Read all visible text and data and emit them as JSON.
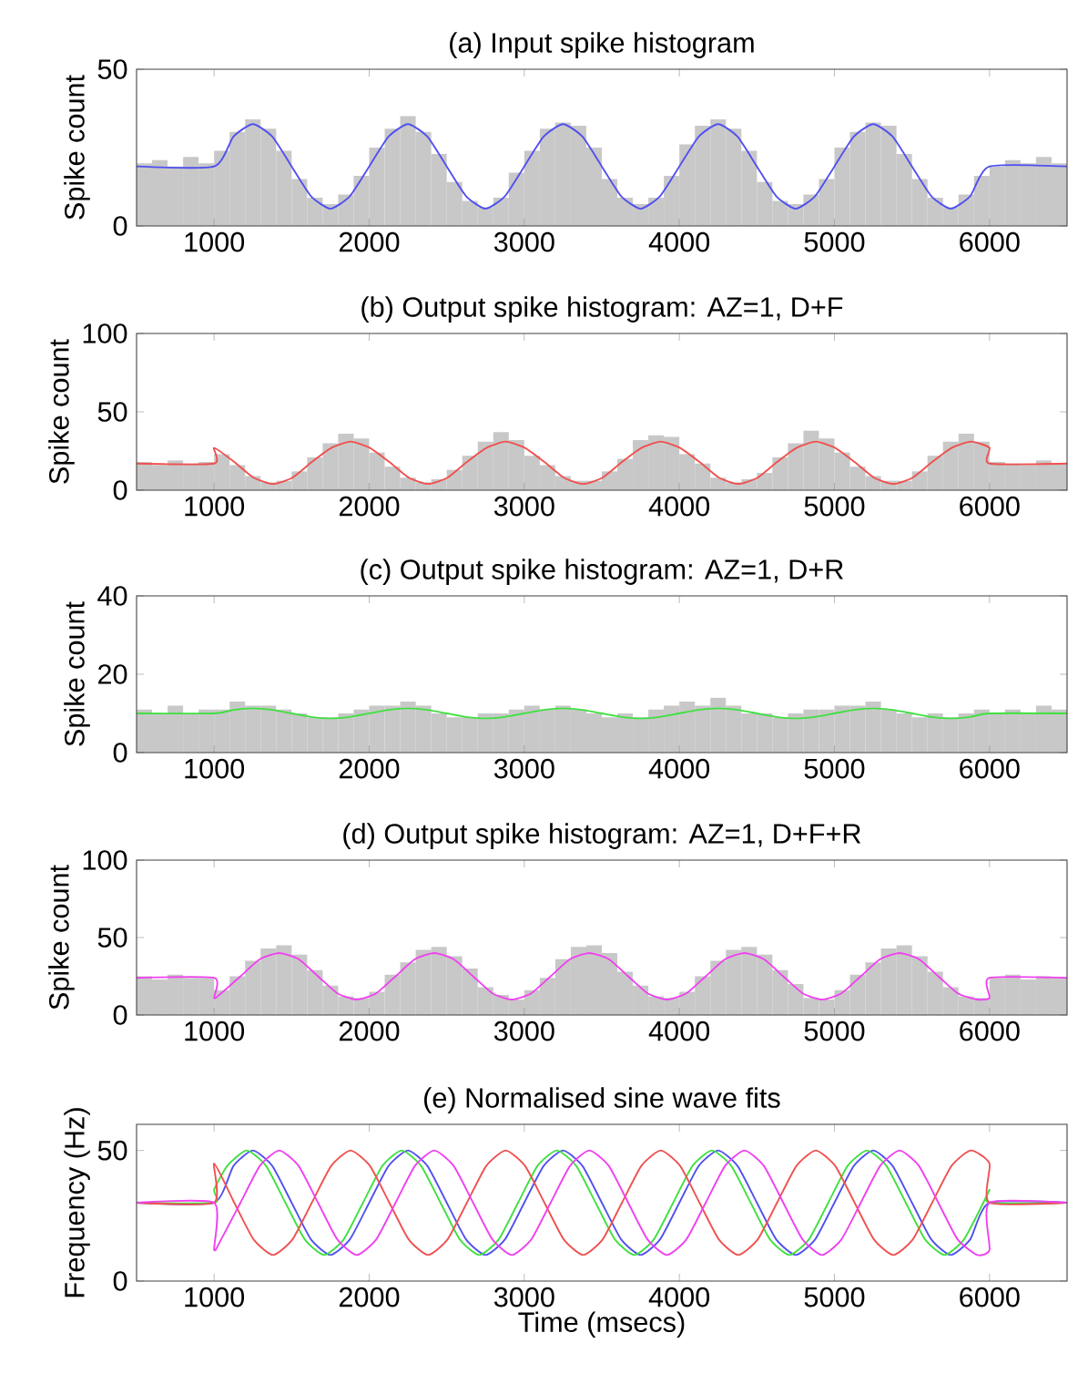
{
  "chart_data": [
    {
      "type": "histogram",
      "title": "(a) Input spike histogram",
      "ylabel": "Spike count",
      "xlim": [
        500,
        6500
      ],
      "xticks": [
        1000,
        2000,
        3000,
        4000,
        5000,
        6000
      ],
      "ylim": [
        0,
        50
      ],
      "yticks": [
        0,
        50
      ],
      "color": "#c8c8c8",
      "bins": [
        500,
        600,
        700,
        800,
        900,
        1000,
        1100,
        1200,
        1300,
        1400,
        1500,
        1600,
        1700,
        1800,
        1900,
        2000,
        2100,
        2200,
        2300,
        2400,
        2500,
        2600,
        2700,
        2800,
        2900,
        3000,
        3100,
        3200,
        3300,
        3400,
        3500,
        3600,
        3700,
        3800,
        3900,
        4000,
        4100,
        4200,
        4300,
        4400,
        4500,
        4600,
        4700,
        4800,
        4900,
        5000,
        5100,
        5200,
        5300,
        5400,
        5500,
        5600,
        5700,
        5800,
        5900,
        6000,
        6100,
        6200,
        6300,
        6400,
        6500
      ],
      "values": [
        20,
        21,
        19,
        22,
        20,
        24,
        30,
        34,
        31,
        24,
        15,
        9,
        7,
        10,
        16,
        25,
        31,
        35,
        30,
        23,
        14,
        8,
        6,
        9,
        17,
        24,
        31,
        33,
        32,
        25,
        15,
        9,
        7,
        9,
        16,
        26,
        32,
        34,
        31,
        24,
        14,
        8,
        7,
        10,
        15,
        25,
        30,
        33,
        32,
        23,
        15,
        9,
        6,
        10,
        16,
        19,
        21,
        20,
        22,
        20
      ],
      "series": [
        {
          "type": "line",
          "color": "#5050f0",
          "x": [
            500,
            1000,
            1125,
            1250,
            1375,
            1500,
            1625,
            1750,
            1875,
            2000,
            2125,
            2250,
            2375,
            2500,
            2625,
            2750,
            2875,
            3000,
            3125,
            3250,
            3375,
            3500,
            3625,
            3750,
            3875,
            4000,
            4125,
            4250,
            4375,
            4500,
            4625,
            4750,
            4875,
            5000,
            5125,
            5250,
            5375,
            5500,
            5625,
            5750,
            5875,
            6000,
            6500
          ],
          "values": [
            19,
            19,
            28.5,
            32.5,
            28.5,
            19,
            9.5,
            5.5,
            9.5,
            19,
            28.5,
            32.5,
            28.5,
            19,
            9.5,
            5.5,
            9.5,
            19,
            28.5,
            32.5,
            28.5,
            19,
            9.5,
            5.5,
            9.5,
            19,
            28.5,
            32.5,
            28.5,
            19,
            9.5,
            5.5,
            9.5,
            19,
            28.5,
            32.5,
            28.5,
            19,
            9.5,
            5.5,
            9.5,
            19,
            19
          ]
        }
      ]
    },
    {
      "type": "histogram",
      "title": "(b) Output spike histogram: AZ=1, D+F",
      "ylabel": "Spike count",
      "xlim": [
        500,
        6500
      ],
      "xticks": [
        1000,
        2000,
        3000,
        4000,
        5000,
        6000
      ],
      "ylim": [
        0,
        100
      ],
      "yticks": [
        0,
        50,
        100
      ],
      "color": "#c8c8c8",
      "bins": [
        500,
        600,
        700,
        800,
        900,
        1000,
        1100,
        1200,
        1300,
        1400,
        1500,
        1600,
        1700,
        1800,
        1900,
        2000,
        2100,
        2200,
        2300,
        2400,
        2500,
        2600,
        2700,
        2800,
        2900,
        3000,
        3100,
        3200,
        3300,
        3400,
        3500,
        3600,
        3700,
        3800,
        3900,
        4000,
        4100,
        4200,
        4300,
        4400,
        4500,
        4600,
        4700,
        4800,
        4900,
        5000,
        5100,
        5200,
        5300,
        5400,
        5500,
        5600,
        5700,
        5800,
        5900,
        6000,
        6100,
        6200,
        6300,
        6400,
        6500
      ],
      "values": [
        18,
        16,
        19,
        17,
        18,
        23,
        16,
        9,
        5,
        6,
        12,
        21,
        30,
        36,
        33,
        24,
        15,
        8,
        5,
        7,
        13,
        22,
        31,
        37,
        32,
        22,
        16,
        9,
        6,
        6,
        12,
        20,
        32,
        35,
        34,
        23,
        17,
        8,
        5,
        7,
        11,
        21,
        30,
        38,
        33,
        24,
        15,
        9,
        6,
        6,
        12,
        22,
        31,
        36,
        31,
        18,
        17,
        16,
        19,
        17
      ],
      "series": [
        {
          "type": "line",
          "color": "#f05050",
          "x": [
            500,
            1000,
            1000,
            1130,
            1255,
            1380,
            1505,
            1630,
            1755,
            1880,
            2005,
            2130,
            2255,
            2380,
            2505,
            2630,
            2755,
            2880,
            3005,
            3130,
            3255,
            3380,
            3505,
            3630,
            3755,
            3880,
            4005,
            4130,
            4255,
            4380,
            4505,
            4630,
            4755,
            4880,
            5005,
            5130,
            5255,
            5380,
            5505,
            5630,
            5755,
            5880,
            6000,
            6000,
            6500
          ],
          "values": [
            17,
            17,
            27,
            18,
            8,
            4,
            8,
            18,
            27,
            31,
            27,
            18,
            8,
            4,
            8,
            18,
            27,
            31,
            27,
            18,
            8,
            4,
            8,
            18,
            27,
            31,
            27,
            18,
            8,
            4,
            8,
            18,
            27,
            31,
            27,
            18,
            8,
            4,
            8,
            18,
            27,
            31,
            27,
            17,
            17
          ]
        }
      ]
    },
    {
      "type": "histogram",
      "title": "(c) Output spike histogram: AZ=1, D+R",
      "ylabel": "Spike count",
      "xlim": [
        500,
        6500
      ],
      "xticks": [
        1000,
        2000,
        3000,
        4000,
        5000,
        6000
      ],
      "ylim": [
        0,
        40
      ],
      "yticks": [
        0,
        20,
        40
      ],
      "color": "#c8c8c8",
      "bins": [
        500,
        600,
        700,
        800,
        900,
        1000,
        1100,
        1200,
        1300,
        1400,
        1500,
        1600,
        1700,
        1800,
        1900,
        2000,
        2100,
        2200,
        2300,
        2400,
        2500,
        2600,
        2700,
        2800,
        2900,
        3000,
        3100,
        3200,
        3300,
        3400,
        3500,
        3600,
        3700,
        3800,
        3900,
        4000,
        4100,
        4200,
        4300,
        4400,
        4500,
        4600,
        4700,
        4800,
        4900,
        5000,
        5100,
        5200,
        5300,
        5400,
        5500,
        5600,
        5700,
        5800,
        5900,
        6000,
        6100,
        6200,
        6300,
        6400,
        6500
      ],
      "values": [
        11,
        10,
        12,
        10,
        11,
        11,
        13,
        12,
        12,
        11,
        10,
        9,
        9,
        10,
        11,
        12,
        12,
        13,
        12,
        10,
        9,
        9,
        10,
        10,
        11,
        12,
        11,
        12,
        11,
        10,
        9,
        10,
        9,
        11,
        12,
        13,
        12,
        14,
        12,
        10,
        10,
        9,
        10,
        11,
        11,
        12,
        12,
        13,
        11,
        10,
        9,
        10,
        9,
        10,
        11,
        10,
        11,
        10,
        12,
        11
      ],
      "series": [
        {
          "type": "line",
          "color": "#40e040",
          "x": [
            500,
            1000,
            1125,
            1250,
            1375,
            1500,
            1625,
            1750,
            1875,
            2000,
            2125,
            2250,
            2375,
            2500,
            2625,
            2750,
            2875,
            3000,
            3125,
            3250,
            3375,
            3500,
            3625,
            3750,
            3875,
            4000,
            4125,
            4250,
            4375,
            4500,
            4625,
            4750,
            4875,
            5000,
            5125,
            5250,
            5375,
            5500,
            5625,
            5750,
            5875,
            6000,
            6500
          ],
          "values": [
            10,
            10,
            10.9,
            11.3,
            10.9,
            10,
            9.1,
            8.7,
            9.1,
            10,
            10.9,
            11.3,
            10.9,
            10,
            9.1,
            8.7,
            9.1,
            10,
            10.9,
            11.3,
            10.9,
            10,
            9.1,
            8.7,
            9.1,
            10,
            10.9,
            11.3,
            10.9,
            10,
            9.1,
            8.7,
            9.1,
            10,
            10.9,
            11.3,
            10.9,
            10,
            9.1,
            8.7,
            9.1,
            10,
            10
          ]
        }
      ]
    },
    {
      "type": "histogram",
      "title": "(d) Output spike histogram: AZ=1, D+F+R",
      "ylabel": "Spike count",
      "xlim": [
        500,
        6500
      ],
      "xticks": [
        1000,
        2000,
        3000,
        4000,
        5000,
        6000
      ],
      "ylim": [
        0,
        100
      ],
      "yticks": [
        0,
        50,
        100
      ],
      "color": "#c8c8c8",
      "bins": [
        500,
        600,
        700,
        800,
        900,
        1000,
        1100,
        1200,
        1300,
        1400,
        1500,
        1600,
        1700,
        1800,
        1900,
        2000,
        2100,
        2200,
        2300,
        2400,
        2500,
        2600,
        2700,
        2800,
        2900,
        3000,
        3100,
        3200,
        3300,
        3400,
        3500,
        3600,
        3700,
        3800,
        3900,
        4000,
        4100,
        4200,
        4300,
        4400,
        4500,
        4600,
        4700,
        4800,
        4900,
        5000,
        5100,
        5200,
        5300,
        5400,
        5500,
        5600,
        5700,
        5800,
        5900,
        6000,
        6100,
        6200,
        6300,
        6400,
        6500
      ],
      "values": [
        25,
        23,
        26,
        24,
        24,
        16,
        25,
        35,
        43,
        45,
        39,
        29,
        19,
        12,
        11,
        15,
        26,
        34,
        42,
        44,
        38,
        30,
        18,
        13,
        10,
        16,
        24,
        36,
        44,
        45,
        40,
        28,
        19,
        12,
        11,
        15,
        25,
        35,
        42,
        44,
        39,
        29,
        20,
        11,
        10,
        16,
        26,
        34,
        43,
        45,
        38,
        28,
        18,
        12,
        11,
        24,
        26,
        23,
        25,
        24
      ],
      "series": [
        {
          "type": "line",
          "color": "#f040f0",
          "x": [
            500,
            1000,
            1000,
            1045,
            1170,
            1295,
            1420,
            1545,
            1670,
            1795,
            1920,
            2045,
            2170,
            2295,
            2420,
            2545,
            2670,
            2795,
            2920,
            3045,
            3170,
            3295,
            3420,
            3545,
            3670,
            3795,
            3920,
            4045,
            4170,
            4295,
            4420,
            4545,
            4670,
            4795,
            4920,
            5045,
            5170,
            5295,
            5420,
            5545,
            5670,
            5795,
            5920,
            6000,
            6000,
            6500
          ],
          "values": [
            24,
            24,
            11,
            14,
            25,
            36,
            40,
            36,
            25,
            14,
            10,
            14,
            25,
            36,
            40,
            36,
            25,
            14,
            10,
            14,
            25,
            36,
            40,
            36,
            25,
            14,
            10,
            14,
            25,
            36,
            40,
            36,
            25,
            14,
            10,
            14,
            25,
            36,
            40,
            36,
            25,
            14,
            10,
            11,
            24,
            24
          ]
        }
      ]
    },
    {
      "type": "line",
      "title": "(e) Normalised sine wave fits",
      "ylabel": "Frequency (Hz)",
      "xlabel": "Time (msecs)",
      "xlim": [
        500,
        6500
      ],
      "xticks": [
        1000,
        2000,
        3000,
        4000,
        5000,
        6000
      ],
      "ylim": [
        0,
        60
      ],
      "yticks": [
        0,
        50
      ],
      "series": [
        {
          "color": "#5050f0",
          "x": [
            500,
            1000,
            1125,
            1250,
            1375,
            1500,
            1625,
            1750,
            1875,
            2000,
            2125,
            2250,
            2375,
            2500,
            2625,
            2750,
            2875,
            3000,
            3125,
            3250,
            3375,
            3500,
            3625,
            3750,
            3875,
            4000,
            4125,
            4250,
            4375,
            4500,
            4625,
            4750,
            4875,
            5000,
            5125,
            5250,
            5375,
            5500,
            5625,
            5750,
            5875,
            6000,
            6500
          ],
          "values": [
            30,
            30,
            44.1,
            50,
            44.1,
            30,
            15.9,
            10,
            15.9,
            30,
            44.1,
            50,
            44.1,
            30,
            15.9,
            10,
            15.9,
            30,
            44.1,
            50,
            44.1,
            30,
            15.9,
            10,
            15.9,
            30,
            44.1,
            50,
            44.1,
            30,
            15.9,
            10,
            15.9,
            30,
            44.1,
            50,
            44.1,
            30,
            15.9,
            10,
            15.9,
            30,
            30
          ]
        },
        {
          "color": "#40e040",
          "x": [
            500,
            1000,
            1000,
            1085,
            1210,
            1335,
            1460,
            1585,
            1710,
            1835,
            1960,
            2085,
            2210,
            2335,
            2460,
            2585,
            2710,
            2835,
            2960,
            3085,
            3210,
            3335,
            3460,
            3585,
            3710,
            3835,
            3960,
            4085,
            4210,
            4335,
            4460,
            4585,
            4710,
            4835,
            4960,
            5085,
            5210,
            5335,
            5460,
            5585,
            5710,
            5835,
            5960,
            6000,
            6000,
            6500
          ],
          "values": [
            30,
            30,
            35,
            44.1,
            50,
            44.1,
            30,
            15.9,
            10,
            15.9,
            30,
            44.1,
            50,
            44.1,
            30,
            15.9,
            10,
            15.9,
            30,
            44.1,
            50,
            44.1,
            30,
            15.9,
            10,
            15.9,
            30,
            44.1,
            50,
            44.1,
            30,
            15.9,
            10,
            15.9,
            30,
            44.1,
            50,
            44.1,
            30,
            15.9,
            10,
            15.9,
            30,
            35,
            30,
            30
          ]
        },
        {
          "color": "#f05050",
          "x": [
            500,
            1000,
            1000,
            1130,
            1255,
            1380,
            1505,
            1630,
            1755,
            1880,
            2005,
            2130,
            2255,
            2380,
            2505,
            2630,
            2755,
            2880,
            3005,
            3130,
            3255,
            3380,
            3505,
            3630,
            3755,
            3880,
            4005,
            4130,
            4255,
            4380,
            4505,
            4630,
            4755,
            4880,
            5005,
            5130,
            5255,
            5380,
            5505,
            5630,
            5755,
            5880,
            6000,
            6000,
            6500
          ],
          "values": [
            30,
            30,
            45,
            30,
            15.9,
            10,
            15.9,
            30,
            44.1,
            50,
            44.1,
            30,
            15.9,
            10,
            15.9,
            30,
            44.1,
            50,
            44.1,
            30,
            15.9,
            10,
            15.9,
            30,
            44.1,
            50,
            44.1,
            30,
            15.9,
            10,
            15.9,
            30,
            44.1,
            50,
            44.1,
            30,
            15.9,
            10,
            15.9,
            30,
            44.1,
            50,
            45,
            30,
            30
          ]
        },
        {
          "color": "#f040f0",
          "x": [
            500,
            1000,
            1000,
            1045,
            1170,
            1295,
            1420,
            1545,
            1670,
            1795,
            1920,
            2045,
            2170,
            2295,
            2420,
            2545,
            2670,
            2795,
            2920,
            3045,
            3170,
            3295,
            3420,
            3545,
            3670,
            3795,
            3920,
            4045,
            4170,
            4295,
            4420,
            4545,
            4670,
            4795,
            4920,
            5045,
            5170,
            5295,
            5420,
            5545,
            5670,
            5795,
            5920,
            6000,
            6000,
            6500
          ],
          "values": [
            30,
            30,
            12,
            15.9,
            30,
            44.1,
            50,
            44.1,
            30,
            15.9,
            10,
            15.9,
            30,
            44.1,
            50,
            44.1,
            30,
            15.9,
            10,
            15.9,
            30,
            44.1,
            50,
            44.1,
            30,
            15.9,
            10,
            15.9,
            30,
            44.1,
            50,
            44.1,
            30,
            15.9,
            10,
            15.9,
            30,
            44.1,
            50,
            44.1,
            30,
            15.9,
            10,
            12,
            30,
            30
          ]
        }
      ]
    }
  ]
}
